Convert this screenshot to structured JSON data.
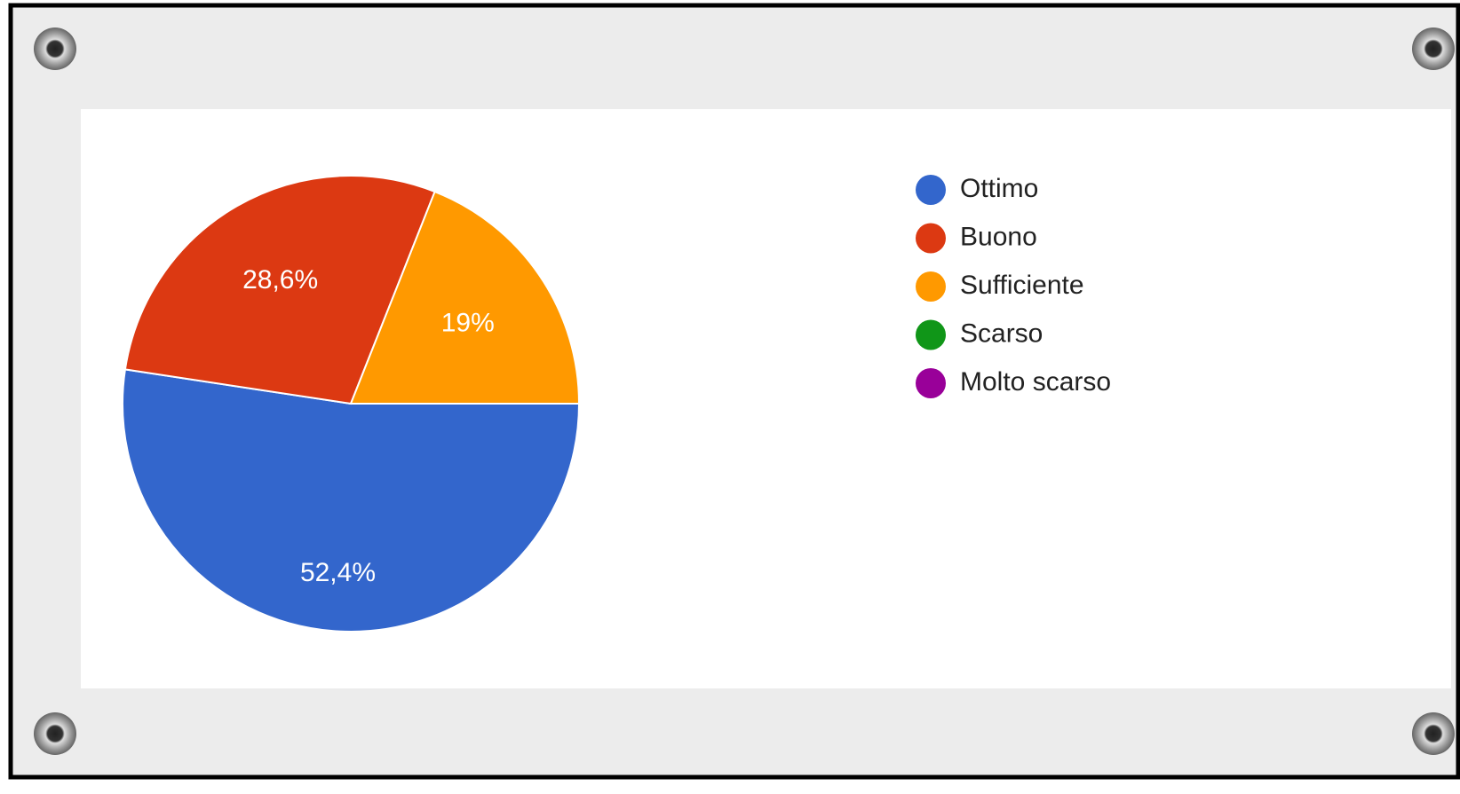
{
  "chart_data": {
    "type": "pie",
    "categories": [
      "Ottimo",
      "Buono",
      "Sufficiente",
      "Scarso",
      "Molto scarso"
    ],
    "values": [
      52.4,
      28.6,
      19,
      0,
      0
    ],
    "value_labels": [
      "52,4%",
      "28,6%",
      "19%",
      null,
      null
    ],
    "colors": [
      "#3366cc",
      "#dc3912",
      "#ff9900",
      "#109618",
      "#990099"
    ],
    "legend": "right"
  }
}
